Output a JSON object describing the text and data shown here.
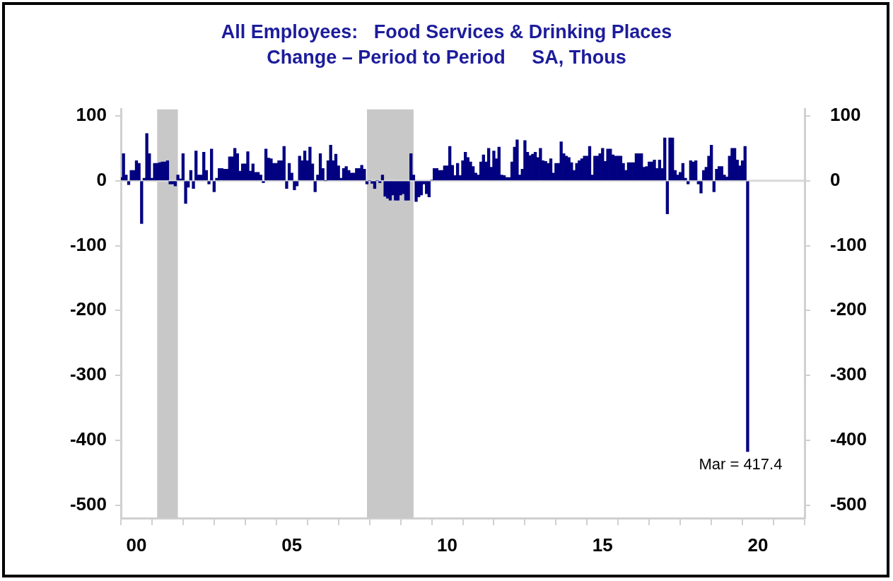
{
  "chart_data": {
    "type": "bar",
    "title": "All Employees:   Food Services & Drinking Places",
    "subtitle": "Change – Period to Period     SA, Thous",
    "x": [
      "2000-01",
      "2000-02",
      "2000-03",
      "2000-04",
      "2000-05",
      "2000-06",
      "2000-07",
      "2000-08",
      "2000-09",
      "2000-10",
      "2000-11",
      "2000-12",
      "2001-01",
      "2001-02",
      "2001-03",
      "2001-04",
      "2001-05",
      "2001-06",
      "2001-07",
      "2001-08",
      "2001-09",
      "2001-10",
      "2001-11",
      "2001-12",
      "2002-01",
      "2002-02",
      "2002-03",
      "2002-04",
      "2002-05",
      "2002-06",
      "2002-07",
      "2002-08",
      "2002-09",
      "2002-10",
      "2002-11",
      "2002-12",
      "2003-01",
      "2003-02",
      "2003-03",
      "2003-04",
      "2003-05",
      "2003-06",
      "2003-07",
      "2003-08",
      "2003-09",
      "2003-10",
      "2003-11",
      "2003-12",
      "2004-01",
      "2004-02",
      "2004-03",
      "2004-04",
      "2004-05",
      "2004-06",
      "2004-07",
      "2004-08",
      "2004-09",
      "2004-10",
      "2004-11",
      "2004-12",
      "2005-01",
      "2005-02",
      "2005-03",
      "2005-04",
      "2005-05",
      "2005-06",
      "2005-07",
      "2005-08",
      "2005-09",
      "2005-10",
      "2005-11",
      "2005-12",
      "2006-01",
      "2006-02",
      "2006-03",
      "2006-04",
      "2006-05",
      "2006-06",
      "2006-07",
      "2006-08",
      "2006-09",
      "2006-10",
      "2006-11",
      "2006-12",
      "2007-01",
      "2007-02",
      "2007-03",
      "2007-04",
      "2007-05",
      "2007-06",
      "2007-07",
      "2007-08",
      "2007-09",
      "2007-10",
      "2007-11",
      "2007-12",
      "2008-01",
      "2008-02",
      "2008-03",
      "2008-04",
      "2008-05",
      "2008-06",
      "2008-07",
      "2008-08",
      "2008-09",
      "2008-10",
      "2008-11",
      "2008-12",
      "2009-01",
      "2009-02",
      "2009-03",
      "2009-04",
      "2009-05",
      "2009-06",
      "2009-07",
      "2009-08",
      "2009-09",
      "2009-10",
      "2009-11",
      "2009-12",
      "2010-01",
      "2010-02",
      "2010-03",
      "2010-04",
      "2010-05",
      "2010-06",
      "2010-07",
      "2010-08",
      "2010-09",
      "2010-10",
      "2010-11",
      "2010-12",
      "2011-01",
      "2011-02",
      "2011-03",
      "2011-04",
      "2011-05",
      "2011-06",
      "2011-07",
      "2011-08",
      "2011-09",
      "2011-10",
      "2011-11",
      "2011-12",
      "2012-01",
      "2012-02",
      "2012-03",
      "2012-04",
      "2012-05",
      "2012-06",
      "2012-07",
      "2012-08",
      "2012-09",
      "2012-10",
      "2012-11",
      "2012-12",
      "2013-01",
      "2013-02",
      "2013-03",
      "2013-04",
      "2013-05",
      "2013-06",
      "2013-07",
      "2013-08",
      "2013-09",
      "2013-10",
      "2013-11",
      "2013-12",
      "2014-01",
      "2014-02",
      "2014-03",
      "2014-04",
      "2014-05",
      "2014-06",
      "2014-07",
      "2014-08",
      "2014-09",
      "2014-10",
      "2014-11",
      "2014-12",
      "2015-01",
      "2015-02",
      "2015-03",
      "2015-04",
      "2015-05",
      "2015-06",
      "2015-07",
      "2015-08",
      "2015-09",
      "2015-10",
      "2015-11",
      "2015-12",
      "2016-01",
      "2016-02",
      "2016-03",
      "2016-04",
      "2016-05",
      "2016-06",
      "2016-07",
      "2016-08",
      "2016-09",
      "2016-10",
      "2016-11",
      "2016-12",
      "2017-01",
      "2017-02",
      "2017-03",
      "2017-04",
      "2017-05",
      "2017-06",
      "2017-07",
      "2017-08",
      "2017-09",
      "2017-10",
      "2017-11",
      "2017-12",
      "2018-01",
      "2018-02",
      "2018-03",
      "2018-04",
      "2018-05",
      "2018-06",
      "2018-07",
      "2018-08",
      "2018-09",
      "2018-10",
      "2018-11",
      "2018-12",
      "2019-01",
      "2019-02",
      "2019-03",
      "2019-04",
      "2019-05",
      "2019-06",
      "2019-07",
      "2019-08",
      "2019-09",
      "2019-10",
      "2019-11",
      "2019-12",
      "2020-01",
      "2020-02",
      "2020-03"
    ],
    "values": [
      5,
      42,
      9,
      -6,
      16,
      16,
      31,
      27,
      -66,
      4,
      73,
      42,
      4,
      27,
      27,
      28,
      29,
      29,
      31,
      -5,
      -5,
      -8,
      9,
      3,
      42,
      -35,
      -10,
      16,
      -12,
      46,
      9,
      9,
      44,
      16,
      -5,
      49,
      -17,
      4,
      19,
      19,
      18,
      18,
      37,
      37,
      50,
      42,
      15,
      26,
      26,
      45,
      15,
      26,
      13,
      13,
      9,
      -3,
      49,
      35,
      34,
      27,
      27,
      31,
      31,
      53,
      -12,
      27,
      12,
      -14,
      -8,
      38,
      31,
      46,
      31,
      52,
      26,
      -17,
      9,
      42,
      19,
      0,
      31,
      55,
      31,
      41,
      23,
      4,
      19,
      22,
      16,
      12,
      12,
      19,
      19,
      24,
      18,
      -5,
      0,
      -4,
      -12,
      0,
      -3,
      9,
      -24,
      -27,
      -30,
      -22,
      -30,
      -30,
      -22,
      -20,
      -30,
      -30,
      42,
      9,
      -32,
      -25,
      -22,
      -5,
      -20,
      -25,
      1,
      19,
      19,
      16,
      16,
      23,
      23,
      53,
      24,
      8,
      27,
      8,
      31,
      44,
      36,
      29,
      22,
      12,
      9,
      29,
      40,
      29,
      50,
      21,
      46,
      34,
      52,
      9,
      8,
      5,
      5,
      29,
      52,
      63,
      9,
      18,
      62,
      44,
      39,
      41,
      44,
      36,
      50,
      31,
      30,
      27,
      34,
      12,
      27,
      27,
      60,
      42,
      38,
      36,
      28,
      16,
      27,
      31,
      34,
      38,
      38,
      53,
      9,
      38,
      38,
      42,
      50,
      30,
      49,
      49,
      40,
      38,
      38,
      38,
      27,
      16,
      28,
      28,
      28,
      42,
      42,
      42,
      21,
      22,
      29,
      29,
      32,
      19,
      32,
      19,
      66,
      -51,
      66,
      66,
      16,
      9,
      13,
      27,
      4,
      -5,
      31,
      29,
      31,
      -5,
      -19,
      16,
      21,
      38,
      55,
      -17,
      18,
      22,
      22,
      9,
      6,
      38,
      50,
      50,
      32,
      23,
      31,
      53,
      -417.4
    ],
    "color": "#000080",
    "xlim": [
      "2000",
      "2022"
    ],
    "xticks": [
      {
        "value": "2000",
        "label": null
      },
      {
        "value": "2000-07",
        "label": "00"
      },
      {
        "value": "2001",
        "label": null
      },
      {
        "value": "2002",
        "label": null
      },
      {
        "value": "2003",
        "label": null
      },
      {
        "value": "2004",
        "label": null
      },
      {
        "value": "2005",
        "label": null
      },
      {
        "value": "2005-07",
        "label": "05"
      },
      {
        "value": "2006",
        "label": null
      },
      {
        "value": "2007",
        "label": null
      },
      {
        "value": "2008",
        "label": null
      },
      {
        "value": "2009",
        "label": null
      },
      {
        "value": "2010",
        "label": null
      },
      {
        "value": "2010-07",
        "label": "10"
      },
      {
        "value": "2011",
        "label": null
      },
      {
        "value": "2012",
        "label": null
      },
      {
        "value": "2013",
        "label": null
      },
      {
        "value": "2014",
        "label": null
      },
      {
        "value": "2015",
        "label": null
      },
      {
        "value": "2015-07",
        "label": "15"
      },
      {
        "value": "2016",
        "label": null
      },
      {
        "value": "2017",
        "label": null
      },
      {
        "value": "2018",
        "label": null
      },
      {
        "value": "2019",
        "label": null
      },
      {
        "value": "2020",
        "label": null
      },
      {
        "value": "2020-07",
        "label": "20"
      },
      {
        "value": "2021",
        "label": null
      },
      {
        "value": "2022",
        "label": null
      }
    ],
    "ylim": [
      -520,
      110
    ],
    "yticks": [
      -500,
      -400,
      -300,
      -200,
      -100,
      0,
      100
    ],
    "y2lim": [
      -520,
      110
    ],
    "y2ticks": [
      -500,
      -400,
      -300,
      -200,
      -100,
      0,
      100
    ],
    "bands": [
      {
        "axis": "x",
        "from": "2001-03",
        "to": "2001-11",
        "color": "#c8c8c8"
      },
      {
        "axis": "x",
        "from": "2007-12",
        "to": "2009-06",
        "color": "#c8c8c8"
      }
    ],
    "ref_lines": [
      {
        "axis": "y",
        "value": 0,
        "color": "#d9d9d9"
      }
    ],
    "annotations": [
      {
        "text": "Mar = 417.4",
        "x": "2020-03",
        "y": -417.4
      }
    ]
  }
}
